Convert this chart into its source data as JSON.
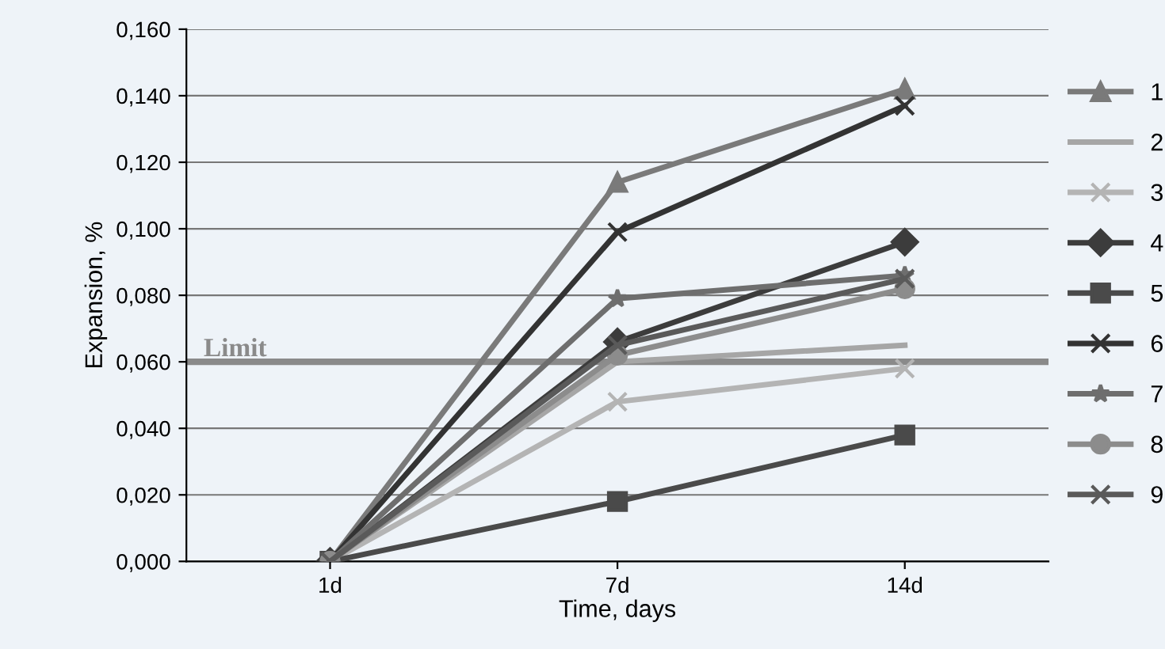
{
  "chart_data": {
    "type": "line",
    "xlabel": "Time, days",
    "ylabel": "Expansion, %",
    "categories": [
      "1d",
      "7d",
      "14d"
    ],
    "series": [
      {
        "name": "1",
        "color": "#7a7a7a",
        "marker": "triangle",
        "values": [
          0,
          0.114,
          0.142
        ]
      },
      {
        "name": "2",
        "color": "#a6a6a6",
        "marker": "none",
        "values": [
          0,
          0.06,
          0.065
        ]
      },
      {
        "name": "3",
        "color": "#b4b4b4",
        "marker": "cross",
        "values": [
          0,
          0.048,
          0.058
        ]
      },
      {
        "name": "4",
        "color": "#3c3c3c",
        "marker": "diamond",
        "values": [
          0,
          0.066,
          0.096
        ]
      },
      {
        "name": "5",
        "color": "#4a4a4a",
        "marker": "square",
        "values": [
          0,
          0.018,
          0.038
        ]
      },
      {
        "name": "6",
        "color": "#333333",
        "marker": "cross",
        "values": [
          0,
          0.099,
          0.137
        ]
      },
      {
        "name": "7",
        "color": "#6e6e6e",
        "marker": "star",
        "values": [
          0,
          0.079,
          0.086
        ]
      },
      {
        "name": "8",
        "color": "#8c8c8c",
        "marker": "circle",
        "values": [
          0,
          0.062,
          0.082
        ]
      },
      {
        "name": "9",
        "color": "#5a5a5a",
        "marker": "cross",
        "values": [
          0,
          0.065,
          0.085
        ]
      }
    ],
    "ylim": [
      0,
      0.16
    ],
    "yticks": [
      {
        "value": 0,
        "label": "0,000"
      },
      {
        "value": 0.02,
        "label": "0,020"
      },
      {
        "value": 0.04,
        "label": "0,040"
      },
      {
        "value": 0.06,
        "label": "0,060"
      },
      {
        "value": 0.08,
        "label": "0,080"
      },
      {
        "value": 0.1,
        "label": "0,100"
      },
      {
        "value": 0.12,
        "label": "0,120"
      },
      {
        "value": 0.14,
        "label": "0,140"
      },
      {
        "value": 0.16,
        "label": "0,160"
      }
    ],
    "ref_lines": [
      {
        "axis": "y",
        "value": 0.06,
        "label": "Limit",
        "color": "#8a8a8a"
      }
    ],
    "grid": "y",
    "legend": "right",
    "line_style": "solid"
  }
}
